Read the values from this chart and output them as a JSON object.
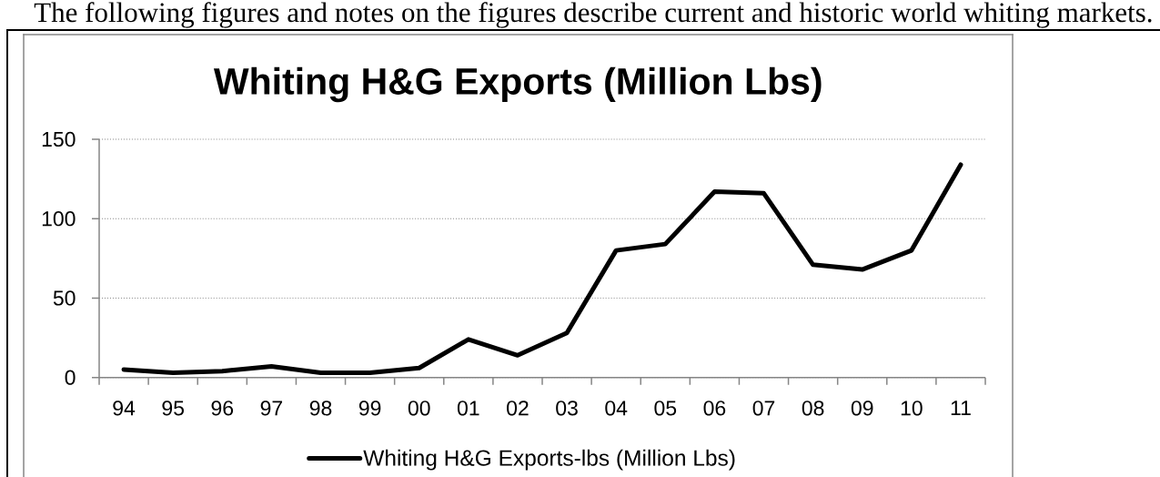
{
  "chart_data": {
    "type": "line",
    "title": "Whiting H&G Exports (Million Lbs)",
    "annotations": [
      "The following figures and notes on the figures describe current and historic world whiting markets."
    ],
    "categories": [
      "94",
      "95",
      "96",
      "97",
      "98",
      "99",
      "00",
      "01",
      "02",
      "03",
      "04",
      "05",
      "06",
      "07",
      "08",
      "09",
      "10",
      "11"
    ],
    "series": [
      {
        "name": "Whiting H&G Exports-lbs (Million Lbs)",
        "color": "#000000",
        "values": [
          5,
          3,
          4,
          7,
          3,
          3,
          6,
          24,
          14,
          28,
          80,
          84,
          117,
          116,
          71,
          68,
          80,
          134
        ]
      }
    ],
    "ylim": [
      0,
      150
    ],
    "yticks": [
      0,
      50,
      100,
      150
    ],
    "grid": "y",
    "legend": "bottom"
  }
}
